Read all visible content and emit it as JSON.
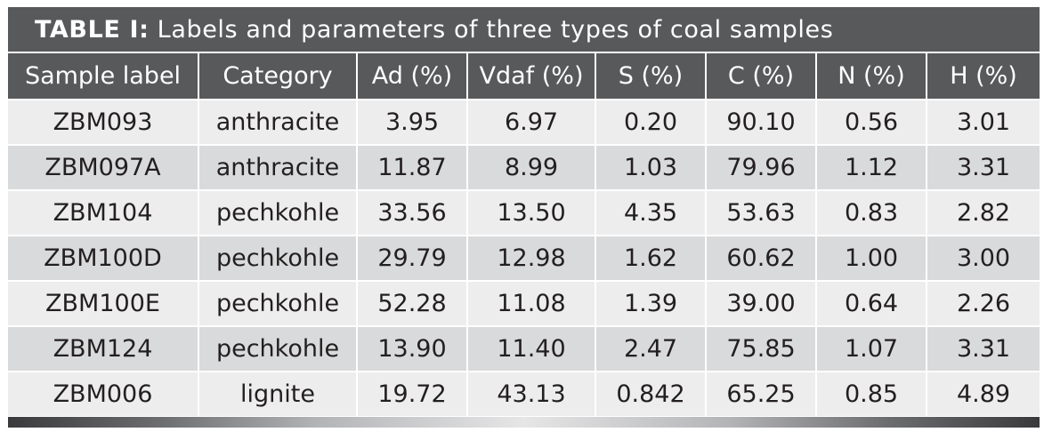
{
  "table": {
    "title_label": "TABLE I:",
    "title_text": " Labels and parameters of three types of coal samples",
    "headers": [
      "Sample label",
      "Category",
      "Ad (%)",
      "Vdaf (%)",
      "S (%)",
      "C (%)",
      "N (%)",
      "H (%)"
    ],
    "rows": [
      [
        "ZBM093",
        "anthracite",
        "3.95",
        "6.97",
        "0.20",
        "90.10",
        "0.56",
        "3.01"
      ],
      [
        "ZBM097A",
        "anthracite",
        "11.87",
        "8.99",
        "1.03",
        "79.96",
        "1.12",
        "3.31"
      ],
      [
        "ZBM104",
        "pechkohle",
        "33.56",
        "13.50",
        "4.35",
        "53.63",
        "0.83",
        "2.82"
      ],
      [
        "ZBM100D",
        "pechkohle",
        "29.79",
        "12.98",
        "1.62",
        "60.62",
        "1.00",
        "3.00"
      ],
      [
        "ZBM100E",
        "pechkohle",
        "52.28",
        "11.08",
        "1.39",
        "39.00",
        "0.64",
        "2.26"
      ],
      [
        "ZBM124",
        "pechkohle",
        "13.90",
        "11.40",
        "2.47",
        "75.85",
        "1.07",
        "3.31"
      ],
      [
        "ZBM006",
        "lignite",
        "19.72",
        "43.13",
        "0.842",
        "65.25",
        "0.85",
        "4.89"
      ]
    ]
  },
  "colors": {
    "header_bg": "#58595b",
    "row_light": "#ededed",
    "row_dark": "#d9dadb",
    "text": "#231f20"
  }
}
